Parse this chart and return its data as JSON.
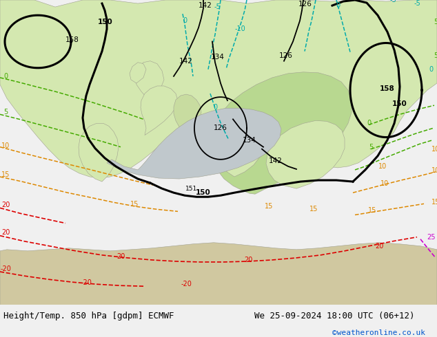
{
  "title_left": "Height/Temp. 850 hPa [gdpm] ECMWF",
  "title_right": "We 25-09-2024 18:00 UTC (06+12)",
  "copyright": "©weatheronline.co.uk",
  "title_fontsize": 9.0,
  "copyright_fontsize": 8.0,
  "contour_black_color": "#000000",
  "contour_black_lw": 2.2,
  "contour_thin_lw": 1.3,
  "contour_cyan_color": "#00aaaa",
  "contour_green_color": "#44aa00",
  "contour_orange_color": "#dd8800",
  "contour_red_color": "#dd0000",
  "contour_magenta_color": "#cc00cc",
  "bg_sea": "#c8c8c8",
  "bg_land_light": "#d4e8b0",
  "bg_land_green": "#b8d890",
  "bg_land_gray": "#c0c0b8",
  "figsize": [
    6.34,
    4.9
  ],
  "dpi": 100
}
